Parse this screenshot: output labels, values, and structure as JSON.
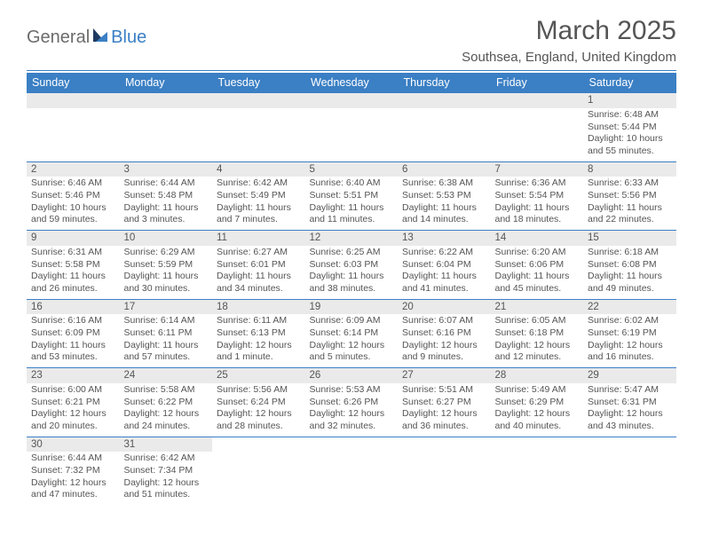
{
  "brand": {
    "part1": "General",
    "part2": "Blue"
  },
  "title": "March 2025",
  "location": "Southsea, England, United Kingdom",
  "colors": {
    "accent": "#3b7fc4",
    "header_bg": "#eaeaea",
    "text": "#555555"
  },
  "weekdays": [
    "Sunday",
    "Monday",
    "Tuesday",
    "Wednesday",
    "Thursday",
    "Friday",
    "Saturday"
  ],
  "weeks": [
    [
      null,
      null,
      null,
      null,
      null,
      null,
      {
        "n": "1",
        "sr": "Sunrise: 6:48 AM",
        "ss": "Sunset: 5:44 PM",
        "d1": "Daylight: 10 hours",
        "d2": "and 55 minutes."
      }
    ],
    [
      {
        "n": "2",
        "sr": "Sunrise: 6:46 AM",
        "ss": "Sunset: 5:46 PM",
        "d1": "Daylight: 10 hours",
        "d2": "and 59 minutes."
      },
      {
        "n": "3",
        "sr": "Sunrise: 6:44 AM",
        "ss": "Sunset: 5:48 PM",
        "d1": "Daylight: 11 hours",
        "d2": "and 3 minutes."
      },
      {
        "n": "4",
        "sr": "Sunrise: 6:42 AM",
        "ss": "Sunset: 5:49 PM",
        "d1": "Daylight: 11 hours",
        "d2": "and 7 minutes."
      },
      {
        "n": "5",
        "sr": "Sunrise: 6:40 AM",
        "ss": "Sunset: 5:51 PM",
        "d1": "Daylight: 11 hours",
        "d2": "and 11 minutes."
      },
      {
        "n": "6",
        "sr": "Sunrise: 6:38 AM",
        "ss": "Sunset: 5:53 PM",
        "d1": "Daylight: 11 hours",
        "d2": "and 14 minutes."
      },
      {
        "n": "7",
        "sr": "Sunrise: 6:36 AM",
        "ss": "Sunset: 5:54 PM",
        "d1": "Daylight: 11 hours",
        "d2": "and 18 minutes."
      },
      {
        "n": "8",
        "sr": "Sunrise: 6:33 AM",
        "ss": "Sunset: 5:56 PM",
        "d1": "Daylight: 11 hours",
        "d2": "and 22 minutes."
      }
    ],
    [
      {
        "n": "9",
        "sr": "Sunrise: 6:31 AM",
        "ss": "Sunset: 5:58 PM",
        "d1": "Daylight: 11 hours",
        "d2": "and 26 minutes."
      },
      {
        "n": "10",
        "sr": "Sunrise: 6:29 AM",
        "ss": "Sunset: 5:59 PM",
        "d1": "Daylight: 11 hours",
        "d2": "and 30 minutes."
      },
      {
        "n": "11",
        "sr": "Sunrise: 6:27 AM",
        "ss": "Sunset: 6:01 PM",
        "d1": "Daylight: 11 hours",
        "d2": "and 34 minutes."
      },
      {
        "n": "12",
        "sr": "Sunrise: 6:25 AM",
        "ss": "Sunset: 6:03 PM",
        "d1": "Daylight: 11 hours",
        "d2": "and 38 minutes."
      },
      {
        "n": "13",
        "sr": "Sunrise: 6:22 AM",
        "ss": "Sunset: 6:04 PM",
        "d1": "Daylight: 11 hours",
        "d2": "and 41 minutes."
      },
      {
        "n": "14",
        "sr": "Sunrise: 6:20 AM",
        "ss": "Sunset: 6:06 PM",
        "d1": "Daylight: 11 hours",
        "d2": "and 45 minutes."
      },
      {
        "n": "15",
        "sr": "Sunrise: 6:18 AM",
        "ss": "Sunset: 6:08 PM",
        "d1": "Daylight: 11 hours",
        "d2": "and 49 minutes."
      }
    ],
    [
      {
        "n": "16",
        "sr": "Sunrise: 6:16 AM",
        "ss": "Sunset: 6:09 PM",
        "d1": "Daylight: 11 hours",
        "d2": "and 53 minutes."
      },
      {
        "n": "17",
        "sr": "Sunrise: 6:14 AM",
        "ss": "Sunset: 6:11 PM",
        "d1": "Daylight: 11 hours",
        "d2": "and 57 minutes."
      },
      {
        "n": "18",
        "sr": "Sunrise: 6:11 AM",
        "ss": "Sunset: 6:13 PM",
        "d1": "Daylight: 12 hours",
        "d2": "and 1 minute."
      },
      {
        "n": "19",
        "sr": "Sunrise: 6:09 AM",
        "ss": "Sunset: 6:14 PM",
        "d1": "Daylight: 12 hours",
        "d2": "and 5 minutes."
      },
      {
        "n": "20",
        "sr": "Sunrise: 6:07 AM",
        "ss": "Sunset: 6:16 PM",
        "d1": "Daylight: 12 hours",
        "d2": "and 9 minutes."
      },
      {
        "n": "21",
        "sr": "Sunrise: 6:05 AM",
        "ss": "Sunset: 6:18 PM",
        "d1": "Daylight: 12 hours",
        "d2": "and 12 minutes."
      },
      {
        "n": "22",
        "sr": "Sunrise: 6:02 AM",
        "ss": "Sunset: 6:19 PM",
        "d1": "Daylight: 12 hours",
        "d2": "and 16 minutes."
      }
    ],
    [
      {
        "n": "23",
        "sr": "Sunrise: 6:00 AM",
        "ss": "Sunset: 6:21 PM",
        "d1": "Daylight: 12 hours",
        "d2": "and 20 minutes."
      },
      {
        "n": "24",
        "sr": "Sunrise: 5:58 AM",
        "ss": "Sunset: 6:22 PM",
        "d1": "Daylight: 12 hours",
        "d2": "and 24 minutes."
      },
      {
        "n": "25",
        "sr": "Sunrise: 5:56 AM",
        "ss": "Sunset: 6:24 PM",
        "d1": "Daylight: 12 hours",
        "d2": "and 28 minutes."
      },
      {
        "n": "26",
        "sr": "Sunrise: 5:53 AM",
        "ss": "Sunset: 6:26 PM",
        "d1": "Daylight: 12 hours",
        "d2": "and 32 minutes."
      },
      {
        "n": "27",
        "sr": "Sunrise: 5:51 AM",
        "ss": "Sunset: 6:27 PM",
        "d1": "Daylight: 12 hours",
        "d2": "and 36 minutes."
      },
      {
        "n": "28",
        "sr": "Sunrise: 5:49 AM",
        "ss": "Sunset: 6:29 PM",
        "d1": "Daylight: 12 hours",
        "d2": "and 40 minutes."
      },
      {
        "n": "29",
        "sr": "Sunrise: 5:47 AM",
        "ss": "Sunset: 6:31 PM",
        "d1": "Daylight: 12 hours",
        "d2": "and 43 minutes."
      }
    ],
    [
      {
        "n": "30",
        "sr": "Sunrise: 6:44 AM",
        "ss": "Sunset: 7:32 PM",
        "d1": "Daylight: 12 hours",
        "d2": "and 47 minutes."
      },
      {
        "n": "31",
        "sr": "Sunrise: 6:42 AM",
        "ss": "Sunset: 7:34 PM",
        "d1": "Daylight: 12 hours",
        "d2": "and 51 minutes."
      },
      null,
      null,
      null,
      null,
      null
    ]
  ]
}
